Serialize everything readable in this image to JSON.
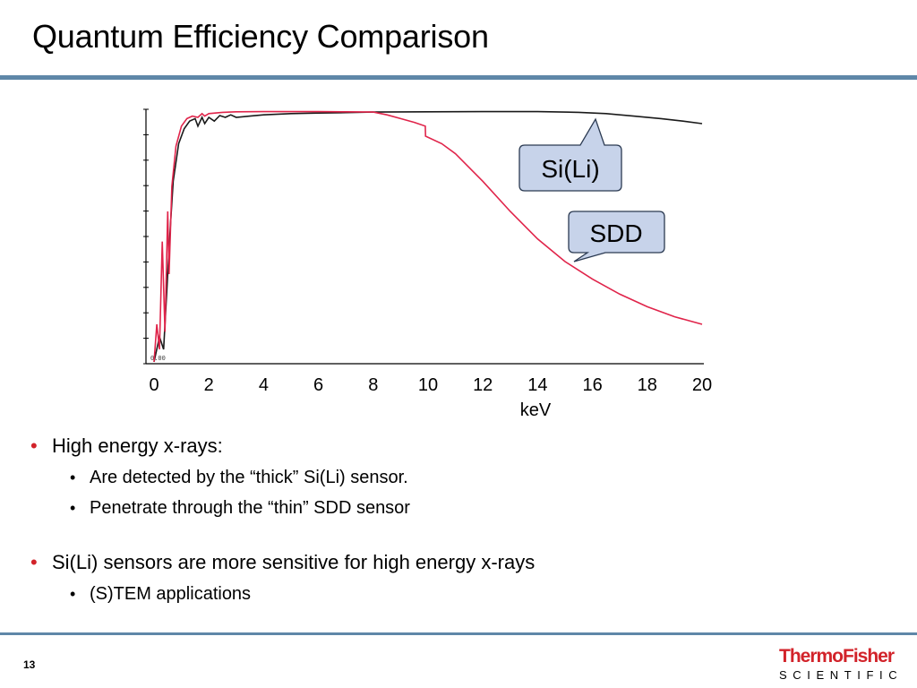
{
  "slide": {
    "title": "Quantum Efficiency Comparison",
    "page_number": "13"
  },
  "bullets": {
    "b1": "High energy x-rays:",
    "b1_sub1": "Are detected by the “thick” Si(Li) sensor.",
    "b1_sub2": "Penetrate through the “thin” SDD sensor",
    "b2": "Si(Li) sensors are more sensitive for high energy x-rays",
    "b2_sub1": "(S)TEM applications"
  },
  "logo": {
    "brand_top": "ThermoFisher",
    "brand_bottom": "SCIENTIFIC"
  },
  "chart_data": {
    "type": "line",
    "xlabel": "keV",
    "xlim": [
      0,
      20
    ],
    "ylim": [
      0,
      1
    ],
    "x_ticks": [
      "0",
      "2",
      "4",
      "6",
      "8",
      "10",
      "12",
      "14",
      "16",
      "18",
      "20"
    ],
    "axis_tiny_label": "0.00",
    "grid": false,
    "series": [
      {
        "name": "Si(Li)",
        "color": "#1a1a1a",
        "x": [
          0.0,
          0.2,
          0.35,
          0.5,
          0.6,
          0.7,
          0.9,
          1.1,
          1.3,
          1.5,
          1.6,
          1.75,
          1.85,
          2.0,
          2.2,
          2.4,
          2.6,
          2.8,
          3.0,
          3.5,
          4.0,
          5.0,
          6.0,
          7.0,
          8.0,
          10.0,
          12.0,
          14.0,
          15.5,
          16.5,
          17.5,
          18.5,
          19.3,
          20.0
        ],
        "y": [
          0.0,
          0.1,
          0.05,
          0.35,
          0.55,
          0.72,
          0.87,
          0.93,
          0.96,
          0.97,
          0.94,
          0.975,
          0.95,
          0.975,
          0.96,
          0.982,
          0.975,
          0.985,
          0.975,
          0.98,
          0.985,
          0.99,
          0.992,
          0.994,
          0.996,
          0.997,
          0.998,
          0.998,
          0.995,
          0.99,
          0.98,
          0.97,
          0.96,
          0.95
        ]
      },
      {
        "name": "SDD",
        "color": "#e0244a",
        "x": [
          0.0,
          0.1,
          0.2,
          0.3,
          0.4,
          0.5,
          0.55,
          0.65,
          0.8,
          1.0,
          1.2,
          1.4,
          1.6,
          1.75,
          1.85,
          2.0,
          2.5,
          3.0,
          4.0,
          5.0,
          6.0,
          7.0,
          8.0,
          8.5,
          9.0,
          9.5,
          9.9,
          9.91,
          10.5,
          11.0,
          12.0,
          13.0,
          14.0,
          15.0,
          16.0,
          17.0,
          18.0,
          19.0,
          20.0
        ],
        "y": [
          0.0,
          0.15,
          0.05,
          0.48,
          0.12,
          0.6,
          0.35,
          0.7,
          0.86,
          0.94,
          0.97,
          0.98,
          0.975,
          0.99,
          0.98,
          0.99,
          0.995,
          0.997,
          0.998,
          0.998,
          0.998,
          0.997,
          0.996,
          0.985,
          0.97,
          0.955,
          0.94,
          0.9,
          0.87,
          0.83,
          0.72,
          0.6,
          0.49,
          0.4,
          0.33,
          0.27,
          0.22,
          0.18,
          0.15
        ]
      }
    ],
    "callouts": [
      {
        "label": "Si(Li)",
        "series": "Si(Li)"
      },
      {
        "label": "SDD",
        "series": "SDD"
      }
    ]
  }
}
